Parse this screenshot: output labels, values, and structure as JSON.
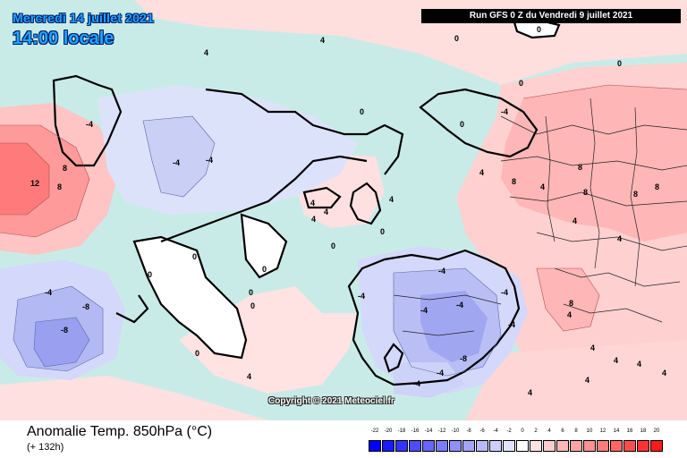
{
  "header": {
    "date_title": "Mercredi 14 juillet 2021",
    "time_title": "14:00 locale",
    "run_info": "Run GFS 0 Z du Vendredi 9 juillet 2021"
  },
  "copyright": "Copyright © 2021 Meteociel.fr",
  "footer": {
    "variable": "Anomalie Temp. 850hPa (°C)",
    "lead_time": "(+ 132h)"
  },
  "legend": {
    "ticks": [
      "-22",
      "-20",
      "-18",
      "-16",
      "-14",
      "-12",
      "-10",
      "-8",
      "-6",
      "-4",
      "-2",
      "0",
      "2",
      "4",
      "6",
      "8",
      "10",
      "12",
      "14",
      "16",
      "18",
      "20"
    ],
    "colors": [
      "#0000ff",
      "#1a1aff",
      "#3333ff",
      "#4d4dff",
      "#6666ff",
      "#7b7bff",
      "#9090ff",
      "#a4a4ff",
      "#b8b8ff",
      "#cdcdff",
      "#e2e2ff",
      "#ffffff",
      "#ffe2e2",
      "#ffcdcd",
      "#ffb8b8",
      "#ffa4a4",
      "#ff9090",
      "#ff7b7b",
      "#ff6666",
      "#ff4d4d",
      "#ff3333",
      "#ff1a1a"
    ]
  },
  "map": {
    "background_color": "#c9ebe7",
    "labels": [
      "0",
      "4",
      "-4",
      "8",
      "-8",
      "12"
    ]
  }
}
